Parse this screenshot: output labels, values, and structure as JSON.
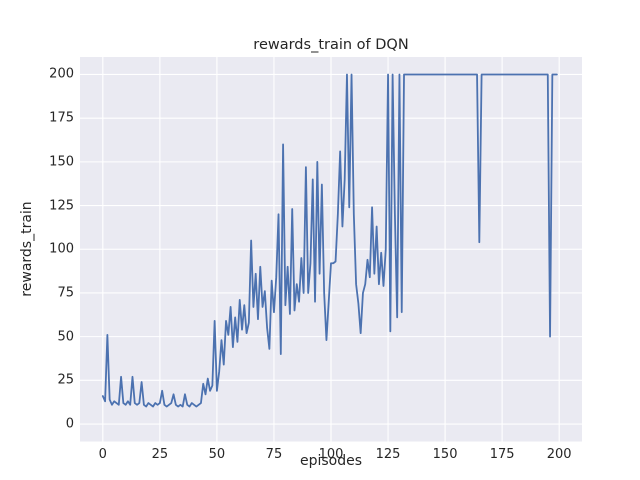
{
  "figure": {
    "background": "#ffffff"
  },
  "chart_data": {
    "type": "line",
    "title": "rewards_train of DQN",
    "xlabel": "episodes",
    "ylabel": "rewards_train",
    "style": "seaborn-darkgrid",
    "grid": true,
    "legend": "none",
    "plot_bg": "#eaeaf2",
    "grid_color": "#ffffff",
    "line_color": "#4c72b0",
    "text_color": "#262626",
    "x_ticks": [
      0,
      25,
      50,
      75,
      100,
      125,
      150,
      175,
      200
    ],
    "y_ticks": [
      0,
      25,
      50,
      75,
      100,
      125,
      150,
      175,
      200
    ],
    "xlim": [
      -10,
      210
    ],
    "ylim": [
      -10,
      210
    ],
    "x_start": 0,
    "x_step": 1,
    "values": [
      16,
      13,
      51,
      14,
      11,
      13,
      12,
      11,
      27,
      12,
      11,
      13,
      11,
      27,
      12,
      11,
      12,
      24,
      11,
      10,
      12,
      11,
      10,
      12,
      11,
      12,
      19,
      11,
      10,
      11,
      12,
      17,
      11,
      10,
      11,
      10,
      17,
      11,
      10,
      12,
      11,
      10,
      11,
      12,
      23,
      17,
      26,
      19,
      22,
      59,
      19,
      30,
      48,
      34,
      59,
      51,
      67,
      44,
      61,
      47,
      71,
      54,
      68,
      52,
      58,
      105,
      67,
      86,
      60,
      90,
      67,
      76,
      55,
      43,
      82,
      64,
      84,
      120,
      40,
      160,
      68,
      90,
      63,
      123,
      65,
      80,
      70,
      95,
      75,
      147,
      75,
      92,
      140,
      70,
      150,
      86,
      137,
      75,
      48,
      70,
      92,
      92,
      93,
      120,
      156,
      113,
      140,
      200,
      124,
      200,
      120,
      80,
      69,
      52,
      75,
      80,
      94,
      84,
      124,
      86,
      113,
      80,
      98,
      79,
      100,
      200,
      53,
      200,
      120,
      61,
      200,
      64,
      200,
      200,
      200,
      200,
      200,
      200,
      200,
      200,
      200,
      200,
      200,
      200,
      200,
      200,
      200,
      200,
      200,
      200,
      200,
      200,
      200,
      200,
      200,
      200,
      200,
      200,
      200,
      200,
      200,
      200,
      200,
      200,
      200,
      104,
      200,
      200,
      200,
      200,
      200,
      200,
      200,
      200,
      200,
      200,
      200,
      200,
      200,
      200,
      200,
      200,
      200,
      200,
      200,
      200,
      200,
      200,
      200,
      200,
      200,
      200,
      200,
      200,
      200,
      200,
      50,
      200,
      200,
      200
    ]
  }
}
